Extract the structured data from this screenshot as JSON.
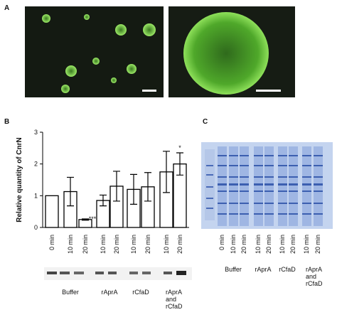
{
  "panel_labels": [
    "A",
    "B",
    "C"
  ],
  "chart_data": {
    "type": "bar",
    "y_label": "Relative quantity of CnrN",
    "categories": [
      "0 min",
      "10 min",
      "20 min",
      "10 min",
      "20 min",
      "10 min",
      "20 min",
      "10 min",
      "20 min"
    ],
    "values": [
      1,
      1.13,
      0.25,
      0.85,
      1.3,
      1.2,
      1.28,
      1.75,
      2.0
    ],
    "errors": [
      null,
      0.45,
      0.02,
      0.17,
      0.47,
      0.47,
      0.45,
      0.65,
      0.35
    ],
    "annotations": [
      null,
      null,
      "***",
      null,
      null,
      null,
      null,
      null,
      "*"
    ],
    "groups": [
      "Buffer",
      "rAprA",
      "rCfaD",
      "rAprA and rCfaD"
    ],
    "color": "#ffffff",
    "ylim": [
      0,
      3
    ],
    "yticks": [
      0,
      1,
      2,
      3
    ]
  },
  "gel": {
    "lanes": [
      "0 min",
      "10 min",
      "20 min",
      "10 min",
      "20 min",
      "10 min",
      "20 min",
      "10 min",
      "20 min"
    ],
    "groups": [
      "Buffer",
      "rAprA",
      "rCfaD",
      "rAprA and rCfaD"
    ]
  }
}
